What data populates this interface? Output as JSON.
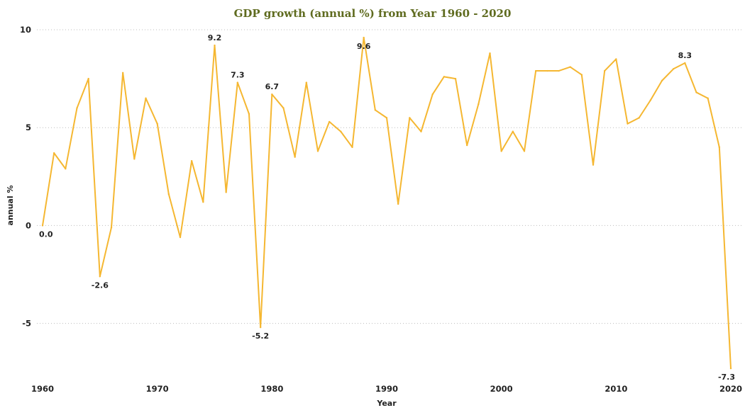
{
  "chart_data": {
    "type": "line",
    "title": "GDP growth (annual %) from Year 1960 - 2020",
    "xlabel": "Year",
    "ylabel": "annual %",
    "xlim": [
      1960,
      2020
    ],
    "ylim": [
      -7.8,
      10
    ],
    "x_ticks": [
      1960,
      1970,
      1980,
      1990,
      2000,
      2010,
      2020
    ],
    "y_ticks": [
      -5,
      0,
      5,
      10
    ],
    "grid": true,
    "legend": "none",
    "colors": {
      "line": "#f5b731",
      "title": "#5f6b1f"
    },
    "series": [
      {
        "x": [
          1960,
          1961,
          1962,
          1963,
          1964,
          1965,
          1966,
          1967,
          1968,
          1969,
          1970,
          1971,
          1972,
          1973,
          1974,
          1975,
          1976,
          1977,
          1978,
          1979,
          1980,
          1981,
          1982,
          1983,
          1984,
          1985,
          1986,
          1987,
          1988,
          1989,
          1990,
          1991,
          1992,
          1993,
          1994,
          1995,
          1996,
          1997,
          1998,
          1999,
          2000,
          2001,
          2002,
          2003,
          2004,
          2005,
          2006,
          2007,
          2008,
          2009,
          2010,
          2011,
          2012,
          2013,
          2014,
          2015,
          2016,
          2017,
          2018,
          2019,
          2020
        ],
        "values": [
          0.0,
          3.7,
          2.9,
          6.0,
          7.5,
          -2.6,
          -0.1,
          7.8,
          3.4,
          6.5,
          5.2,
          1.6,
          -0.6,
          3.3,
          1.2,
          9.2,
          1.7,
          7.3,
          5.7,
          -5.2,
          6.7,
          6.0,
          3.5,
          7.3,
          3.8,
          5.3,
          4.8,
          4.0,
          9.6,
          5.9,
          5.5,
          1.1,
          5.5,
          4.8,
          6.7,
          7.6,
          7.5,
          4.1,
          6.2,
          8.8,
          3.8,
          4.8,
          3.8,
          7.9,
          7.9,
          7.9,
          8.1,
          7.7,
          3.1,
          7.9,
          8.5,
          5.2,
          5.5,
          6.4,
          7.4,
          8.0,
          8.3,
          6.8,
          6.5,
          4.0,
          -7.3
        ]
      }
    ],
    "annotations": [
      {
        "x": 1960,
        "y": 0.0,
        "text": "0.0",
        "pos": "below"
      },
      {
        "x": 1965,
        "y": -2.6,
        "text": "-2.6",
        "pos": "below"
      },
      {
        "x": 1975,
        "y": 9.2,
        "text": "9.2",
        "pos": "above"
      },
      {
        "x": 1977,
        "y": 7.3,
        "text": "7.3",
        "pos": "above"
      },
      {
        "x": 1979,
        "y": -5.2,
        "text": "-5.2",
        "pos": "below"
      },
      {
        "x": 1980,
        "y": 6.7,
        "text": "6.7",
        "pos": "above"
      },
      {
        "x": 1988,
        "y": 9.6,
        "text": "9.6",
        "pos": "below"
      },
      {
        "x": 2016,
        "y": 8.3,
        "text": "8.3",
        "pos": "above"
      },
      {
        "x": 2020,
        "y": -7.3,
        "text": "-7.3",
        "pos": "below"
      }
    ]
  }
}
